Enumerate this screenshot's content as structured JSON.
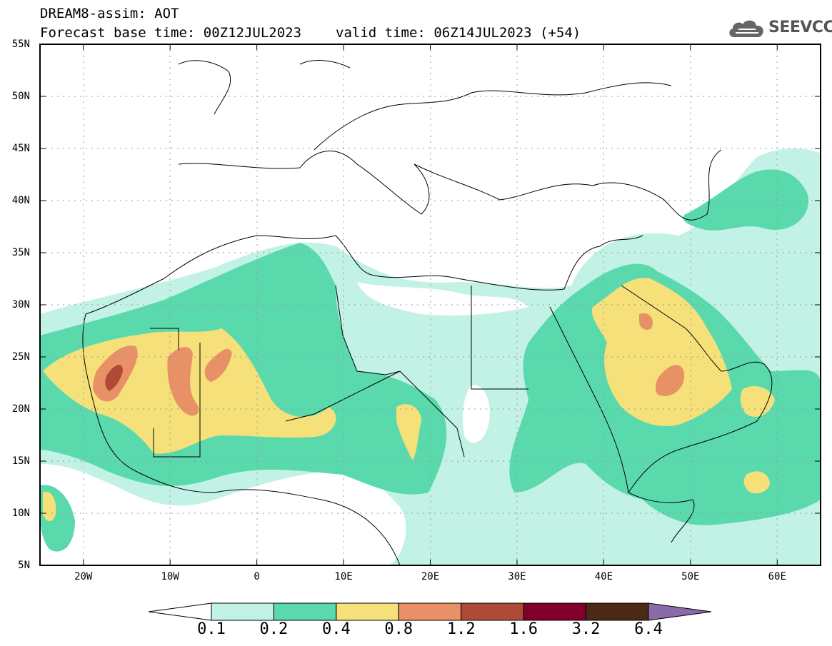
{
  "header": {
    "line1": "DREAM8-assim: AOT",
    "base_time": "Forecast base time: 00Z12JUL2023",
    "valid_time": "valid time: 06Z14JUL2023 (+54)"
  },
  "logo": {
    "text": "SEEVCCC",
    "icon": "cloud-logo-icon",
    "color": "#555555"
  },
  "map": {
    "lat_labels": [
      "55N",
      "50N",
      "45N",
      "40N",
      "35N",
      "30N",
      "25N",
      "20N",
      "15N",
      "10N",
      "5N"
    ],
    "lon_labels": [
      "20W",
      "10W",
      "0",
      "10E",
      "20E",
      "30E",
      "40E",
      "50E",
      "60E"
    ],
    "lat_values": [
      55,
      50,
      45,
      40,
      35,
      30,
      25,
      20,
      15,
      10,
      5
    ],
    "lon_values": [
      -20,
      -10,
      0,
      10,
      20,
      30,
      40,
      50,
      60
    ],
    "lon_range": [
      -25,
      65
    ],
    "lat_range": [
      5,
      55
    ],
    "gridlines": "dotted"
  },
  "colorbar": {
    "labels": [
      "0.1",
      "0.2",
      "0.4",
      "0.8",
      "1.2",
      "1.6",
      "3.2",
      "6.4"
    ],
    "colors": [
      "#ffffff",
      "#c2f2e6",
      "#5ad9ad",
      "#f5e07a",
      "#e89066",
      "#b04a38",
      "#80002a",
      "#4a2a14",
      "#8a6aa8"
    ]
  }
}
